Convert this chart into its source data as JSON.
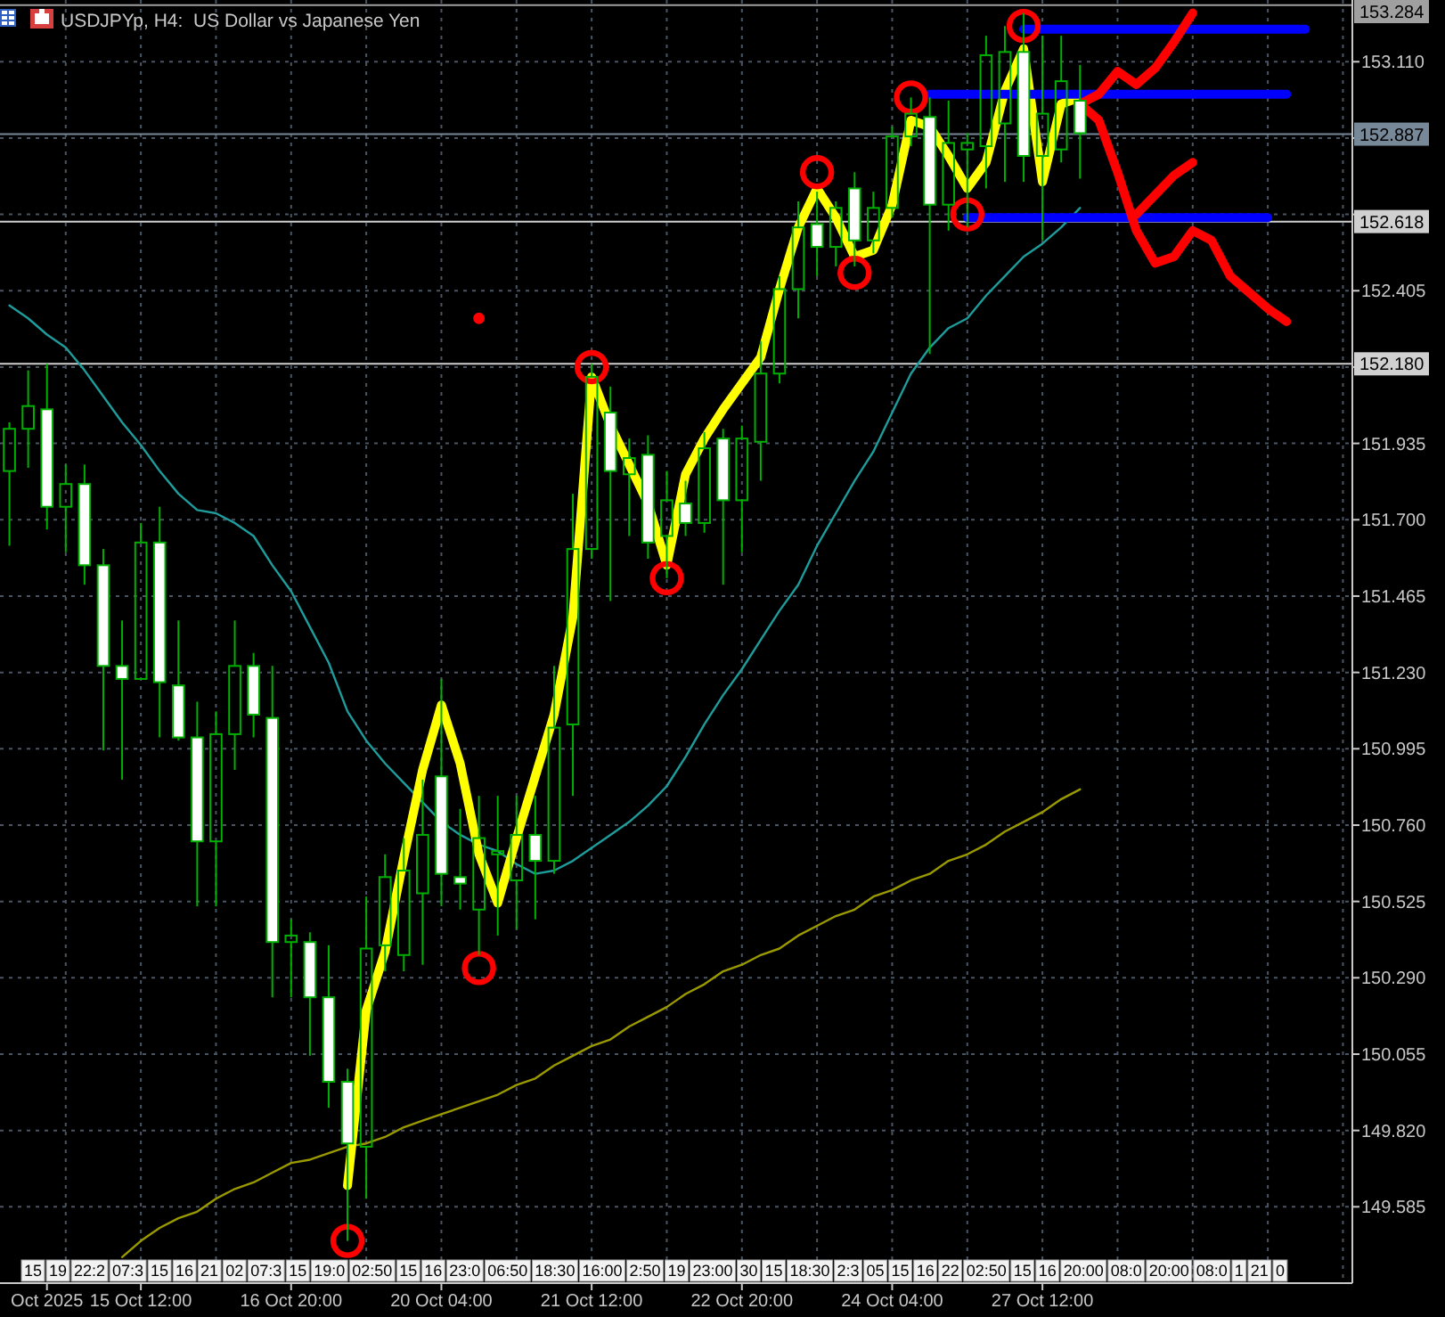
{
  "chart_data": {
    "type": "candlestick",
    "title": "USDJPYp, H4:  US Dollar vs Japanese Yen",
    "color": "#00b000",
    "grid": true,
    "categories": [
      null,
      null,
      "Oct 2025",
      null,
      null,
      null,
      null,
      "15 Oct 12:00",
      null,
      null,
      null,
      null,
      null,
      null,
      null,
      "16 Oct 20:00",
      null,
      null,
      null,
      null,
      null,
      null,
      null,
      "20 Oct 04:00",
      null,
      null,
      null,
      null,
      null,
      null,
      null,
      "21 Oct 12:00",
      null,
      null,
      null,
      null,
      null,
      null,
      null,
      "22 Oct 20:00",
      null,
      null,
      null,
      null,
      null,
      null,
      null,
      "24 Oct 04:00",
      null,
      null,
      null,
      null,
      null,
      null,
      null,
      "27 Oct 12:00",
      null,
      null,
      null,
      null,
      null,
      null,
      null,
      null,
      null,
      null,
      null,
      null,
      null,
      null,
      null,
      null
    ],
    "ohlc": [
      [
        151.85,
        152.0,
        151.62,
        151.98
      ],
      [
        151.98,
        152.16,
        151.86,
        152.05
      ],
      [
        152.04,
        152.18,
        151.67,
        151.74
      ],
      [
        151.74,
        151.87,
        151.6,
        151.81
      ],
      [
        151.81,
        151.87,
        151.5,
        151.56
      ],
      [
        151.56,
        151.61,
        150.99,
        151.25
      ],
      [
        151.25,
        151.39,
        150.9,
        151.21
      ],
      [
        151.21,
        151.69,
        151.21,
        151.63
      ],
      [
        151.63,
        151.74,
        151.03,
        151.2
      ],
      [
        151.19,
        151.39,
        151.02,
        151.03
      ],
      [
        151.03,
        151.14,
        150.51,
        150.71
      ],
      [
        150.71,
        151.11,
        150.51,
        151.04
      ],
      [
        151.04,
        151.39,
        150.93,
        151.25
      ],
      [
        151.25,
        151.29,
        151.03,
        151.1
      ],
      [
        151.09,
        151.25,
        150.23,
        150.4
      ],
      [
        150.4,
        150.47,
        150.23,
        150.42
      ],
      [
        150.4,
        150.43,
        150.05,
        150.23
      ],
      [
        150.23,
        150.39,
        149.89,
        149.97
      ],
      [
        149.97,
        150.01,
        149.48,
        149.78
      ],
      [
        149.77,
        150.54,
        149.61,
        150.38
      ],
      [
        150.39,
        150.67,
        150.31,
        150.6
      ],
      [
        150.36,
        150.72,
        150.31,
        150.62
      ],
      [
        150.55,
        150.9,
        150.33,
        150.73
      ],
      [
        150.91,
        151.21,
        150.51,
        150.61
      ],
      [
        150.6,
        150.81,
        150.5,
        150.58
      ],
      [
        150.5,
        150.85,
        150.36,
        150.72
      ],
      [
        150.67,
        150.85,
        150.42,
        150.68
      ],
      [
        150.59,
        150.85,
        150.44,
        150.73
      ],
      [
        150.73,
        150.85,
        150.47,
        150.65
      ],
      [
        150.65,
        151.25,
        150.61,
        151.06
      ],
      [
        151.07,
        151.78,
        150.85,
        151.61
      ],
      [
        151.61,
        152.18,
        151.58,
        152.14
      ],
      [
        152.03,
        152.11,
        151.45,
        151.85
      ],
      [
        151.84,
        151.95,
        151.65,
        151.89
      ],
      [
        151.9,
        151.96,
        151.58,
        151.63
      ],
      [
        151.65,
        151.85,
        151.52,
        151.76
      ],
      [
        151.75,
        151.82,
        151.65,
        151.69
      ],
      [
        151.69,
        151.97,
        151.66,
        151.92
      ],
      [
        151.95,
        151.98,
        151.5,
        151.76
      ],
      [
        151.76,
        151.99,
        151.6,
        151.95
      ],
      [
        151.94,
        152.25,
        151.82,
        152.15
      ],
      [
        152.15,
        152.45,
        152.12,
        152.41
      ],
      [
        152.41,
        152.68,
        152.32,
        152.6
      ],
      [
        152.61,
        152.71,
        152.45,
        152.54
      ],
      [
        152.54,
        152.68,
        152.48,
        152.66
      ],
      [
        152.72,
        152.77,
        152.48,
        152.56
      ],
      [
        152.56,
        152.71,
        152.52,
        152.66
      ],
      [
        152.66,
        152.91,
        152.63,
        152.88
      ],
      [
        152.88,
        153.0,
        152.85,
        152.95
      ],
      [
        152.94,
        153.0,
        152.21,
        152.67
      ],
      [
        152.67,
        152.99,
        152.59,
        152.86
      ],
      [
        152.84,
        152.89,
        152.6,
        152.86
      ],
      [
        152.85,
        153.19,
        152.72,
        153.13
      ],
      [
        152.92,
        153.22,
        152.74,
        153.14
      ],
      [
        153.14,
        153.26,
        152.74,
        152.82
      ],
      [
        152.82,
        153.19,
        152.56,
        152.95
      ],
      [
        152.84,
        153.19,
        152.8,
        153.05
      ],
      [
        152.99,
        153.1,
        152.75,
        152.89
      ],
      null,
      null,
      null,
      null,
      null,
      null,
      null,
      null,
      null,
      null,
      null,
      null,
      null,
      null
    ],
    "ylim": [
      149.35,
      153.3
    ],
    "yticks": [
      149.585,
      {
        "value": 149.82,
        "label": "149.820"
      },
      150.055,
      {
        "value": 150.29,
        "label": "150.290"
      },
      150.525,
      {
        "value": 150.76,
        "label": "150.760"
      },
      150.995,
      {
        "value": 151.23,
        "label": "151.230"
      },
      151.465,
      {
        "value": 151.7,
        "label": "151.700"
      },
      151.935,
      {
        "value": 152.17,
        "label": null
      },
      152.405,
      {
        "value": 152.64,
        "label": null
      },
      {
        "value": 152.875,
        "label": null
      },
      {
        "value": 153.11,
        "label": "153.110"
      }
    ],
    "ref_lines": [
      {
        "axis": "y",
        "value": 152.18,
        "label": "152.180",
        "color": "#d0d0d0"
      },
      {
        "axis": "y",
        "value": 152.618,
        "label": "152.618",
        "color": "#d0d0d0"
      },
      {
        "axis": "y",
        "value": 152.887,
        "label": "152.887",
        "color": "#778899"
      },
      {
        "axis": "y",
        "value": 153.284,
        "label": "153.284",
        "color": "#a0a0a0"
      }
    ],
    "series": [
      {
        "type": "line",
        "color": "#1f9c9c",
        "values": [
          152.36,
          152.32,
          152.27,
          152.23,
          152.16,
          152.08,
          152.0,
          151.93,
          151.85,
          151.78,
          151.73,
          151.72,
          151.69,
          151.65,
          151.56,
          151.48,
          151.37,
          151.26,
          151.11,
          151.02,
          150.95,
          150.89,
          150.83,
          150.77,
          150.73,
          150.7,
          150.68,
          150.64,
          150.61,
          150.62,
          150.65,
          150.69,
          150.73,
          150.77,
          150.82,
          150.88,
          150.97,
          151.07,
          151.16,
          151.24,
          151.33,
          151.42,
          151.5,
          151.62,
          151.72,
          151.82,
          151.91,
          152.03,
          152.15,
          152.23,
          152.29,
          152.32,
          152.39,
          152.45,
          152.51,
          152.55,
          152.6,
          152.66,
          null,
          null,
          null,
          null,
          null,
          null,
          null,
          null,
          null,
          null,
          null,
          null,
          null,
          null
        ]
      },
      {
        "type": "line",
        "color": "#9a9a00",
        "values": [
          null,
          null,
          null,
          null,
          null,
          null,
          149.43,
          149.48,
          149.52,
          149.55,
          149.57,
          149.61,
          149.64,
          149.66,
          149.69,
          149.72,
          149.73,
          149.75,
          149.77,
          149.78,
          149.8,
          149.83,
          149.85,
          149.87,
          149.89,
          149.91,
          149.93,
          149.96,
          149.98,
          150.02,
          150.05,
          150.08,
          150.1,
          150.14,
          150.17,
          150.2,
          150.24,
          150.27,
          150.31,
          150.33,
          150.36,
          150.38,
          150.42,
          150.45,
          150.48,
          150.5,
          150.54,
          150.56,
          150.59,
          150.61,
          150.65,
          150.67,
          150.7,
          150.74,
          150.77,
          150.8,
          150.84,
          150.87,
          null,
          null,
          null,
          null,
          null,
          null,
          null,
          null,
          null,
          null,
          null,
          null,
          null,
          null
        ]
      },
      {
        "type": "line",
        "color": "#ffff00",
        "values": [
          null,
          null,
          null,
          null,
          null,
          null,
          null,
          null,
          null,
          null,
          null,
          null,
          null,
          null,
          null,
          null,
          null,
          null,
          149.65,
          150.19,
          150.37,
          150.66,
          150.93,
          151.13,
          150.95,
          150.67,
          150.52,
          150.72,
          150.91,
          151.1,
          151.4,
          152.14,
          151.99,
          151.87,
          151.75,
          151.56,
          151.84,
          151.95,
          152.04,
          152.12,
          152.2,
          152.41,
          152.6,
          152.72,
          152.63,
          152.51,
          152.53,
          152.67,
          152.93,
          152.91,
          152.82,
          152.72,
          152.8,
          153.02,
          153.15,
          152.74,
          152.98,
          153.0,
          null,
          null,
          null,
          null,
          null,
          null,
          null,
          null,
          null,
          null,
          null,
          null,
          null,
          null
        ]
      },
      {
        "type": "line",
        "color": "#0000ff",
        "values": [
          null,
          null,
          null,
          null,
          null,
          null,
          null,
          null,
          null,
          null,
          null,
          null,
          null,
          null,
          null,
          null,
          null,
          null,
          null,
          null,
          null,
          null,
          null,
          null,
          null,
          null,
          null,
          null,
          null,
          null,
          null,
          null,
          null,
          null,
          null,
          null,
          null,
          null,
          null,
          null,
          null,
          null,
          null,
          null,
          null,
          null,
          null,
          null,
          null,
          null,
          null,
          null,
          null,
          null,
          153.21,
          153.21,
          153.21,
          153.21,
          153.21,
          153.21,
          153.21,
          153.21,
          153.21,
          153.21,
          153.21,
          153.21,
          153.21,
          153.21,
          153.21,
          153.21,
          null,
          null
        ]
      },
      {
        "type": "line",
        "color": "#0000ff",
        "values": [
          null,
          null,
          null,
          null,
          null,
          null,
          null,
          null,
          null,
          null,
          null,
          null,
          null,
          null,
          null,
          null,
          null,
          null,
          null,
          null,
          null,
          null,
          null,
          null,
          null,
          null,
          null,
          null,
          null,
          null,
          null,
          null,
          null,
          null,
          null,
          null,
          null,
          null,
          null,
          null,
          null,
          null,
          null,
          null,
          null,
          null,
          null,
          null,
          null,
          153.01,
          153.01,
          153.01,
          153.01,
          153.01,
          153.01,
          153.01,
          153.01,
          153.01,
          153.01,
          153.01,
          153.01,
          153.01,
          153.01,
          153.01,
          153.01,
          153.01,
          153.01,
          153.01,
          153.01,
          null,
          null,
          null
        ]
      },
      {
        "type": "line",
        "color": "#0000ff",
        "values": [
          null,
          null,
          null,
          null,
          null,
          null,
          null,
          null,
          null,
          null,
          null,
          null,
          null,
          null,
          null,
          null,
          null,
          null,
          null,
          null,
          null,
          null,
          null,
          null,
          null,
          null,
          null,
          null,
          null,
          null,
          null,
          null,
          null,
          null,
          null,
          null,
          null,
          null,
          null,
          null,
          null,
          null,
          null,
          null,
          null,
          null,
          null,
          null,
          null,
          null,
          null,
          152.63,
          152.63,
          152.63,
          152.63,
          152.63,
          152.63,
          152.63,
          152.63,
          152.63,
          152.63,
          152.63,
          152.63,
          152.63,
          152.63,
          152.63,
          152.63,
          152.63,
          null,
          null,
          null,
          null
        ]
      },
      {
        "type": "line",
        "color": "#ff0000",
        "values": [
          null,
          null,
          null,
          null,
          null,
          null,
          null,
          null,
          null,
          null,
          null,
          null,
          null,
          null,
          null,
          null,
          null,
          null,
          null,
          null,
          null,
          null,
          null,
          null,
          null,
          null,
          null,
          null,
          null,
          null,
          null,
          null,
          null,
          null,
          null,
          null,
          null,
          null,
          null,
          null,
          null,
          null,
          null,
          null,
          null,
          null,
          null,
          null,
          null,
          null,
          null,
          null,
          null,
          null,
          null,
          null,
          null,
          152.98,
          152.93,
          152.77,
          152.59,
          152.49,
          152.51,
          152.59,
          152.56,
          152.45,
          152.4,
          152.35,
          152.31,
          null,
          null,
          null
        ]
      },
      {
        "type": "line",
        "color": "#ff0000",
        "values": [
          null,
          null,
          null,
          null,
          null,
          null,
          null,
          null,
          null,
          null,
          null,
          null,
          null,
          null,
          null,
          null,
          null,
          null,
          null,
          null,
          null,
          null,
          null,
          null,
          null,
          null,
          null,
          null,
          null,
          null,
          null,
          null,
          null,
          null,
          null,
          null,
          null,
          null,
          null,
          null,
          null,
          null,
          null,
          null,
          null,
          null,
          null,
          null,
          null,
          null,
          null,
          null,
          null,
          null,
          null,
          null,
          null,
          152.98,
          153.01,
          153.08,
          153.04,
          153.09,
          153.17,
          153.26,
          null,
          null,
          null,
          null,
          null,
          null,
          null,
          null
        ]
      },
      {
        "type": "line",
        "color": "#ff0000",
        "values": [
          null,
          null,
          null,
          null,
          null,
          null,
          null,
          null,
          null,
          null,
          null,
          null,
          null,
          null,
          null,
          null,
          null,
          null,
          null,
          null,
          null,
          null,
          null,
          null,
          null,
          null,
          null,
          null,
          null,
          null,
          null,
          null,
          null,
          null,
          null,
          null,
          null,
          null,
          null,
          null,
          null,
          null,
          null,
          null,
          null,
          null,
          null,
          null,
          null,
          null,
          null,
          null,
          null,
          null,
          null,
          null,
          null,
          null,
          null,
          null,
          152.64,
          152.7,
          152.76,
          152.8,
          null,
          null,
          null,
          null,
          null,
          null,
          null,
          null
        ]
      },
      {
        "type": "bubble",
        "color": "#ff0000",
        "values": [
          null,
          null,
          null,
          null,
          null,
          null,
          null,
          null,
          null,
          null,
          null,
          null,
          null,
          null,
          null,
          null,
          null,
          null,
          149.48,
          null,
          null,
          null,
          null,
          null,
          null,
          150.32,
          null,
          null,
          null,
          null,
          null,
          152.17,
          null,
          null,
          null,
          151.52,
          null,
          null,
          null,
          null,
          null,
          null,
          null,
          152.77,
          null,
          152.46,
          null,
          null,
          153.0,
          null,
          null,
          152.64,
          null,
          null,
          153.22,
          null,
          null,
          null,
          null,
          null,
          null,
          null,
          null,
          null,
          null,
          null,
          null,
          null,
          null,
          null,
          null,
          null
        ],
        "sizes": [
          null,
          null,
          null,
          null,
          null,
          null,
          null,
          null,
          null,
          null,
          null,
          null,
          null,
          null,
          null,
          null,
          null,
          null,
          1,
          null,
          null,
          null,
          null,
          null,
          null,
          1,
          null,
          null,
          null,
          null,
          null,
          1,
          null,
          null,
          null,
          1,
          null,
          null,
          null,
          null,
          null,
          null,
          null,
          1,
          null,
          1,
          null,
          null,
          1,
          null,
          null,
          1,
          null,
          null,
          1,
          null,
          null,
          null,
          null,
          null,
          null,
          null,
          null,
          null,
          null,
          null,
          null,
          null,
          null,
          null,
          null,
          null
        ]
      },
      {
        "type": "bubble",
        "color": "#ff0000",
        "values": [
          null,
          null,
          null,
          null,
          null,
          null,
          null,
          null,
          null,
          null,
          null,
          null,
          null,
          null,
          null,
          null,
          null,
          null,
          null,
          null,
          null,
          null,
          null,
          null,
          null,
          152.32,
          null,
          null,
          null,
          null,
          null,
          null,
          null,
          null,
          null,
          null,
          null,
          null,
          null,
          null,
          null,
          null,
          null,
          null,
          null,
          null,
          null,
          null,
          null,
          null,
          null,
          null,
          null,
          null,
          null,
          null,
          null,
          null,
          null,
          null,
          null,
          null,
          null,
          null,
          null,
          null,
          null,
          null,
          null,
          null,
          null,
          null
        ],
        "sizes": [
          null,
          null,
          null,
          null,
          null,
          null,
          null,
          null,
          null,
          null,
          null,
          null,
          null,
          null,
          null,
          null,
          null,
          null,
          null,
          null,
          null,
          null,
          null,
          null,
          null,
          0.04,
          null,
          null,
          null,
          null,
          null,
          null,
          null,
          null,
          null,
          null,
          null,
          null,
          null,
          null,
          null,
          null,
          null,
          null,
          null,
          null,
          null,
          null,
          null,
          null,
          null,
          null,
          null,
          null,
          null,
          null,
          null,
          null,
          null,
          null,
          null,
          null,
          null,
          null,
          null,
          null,
          null,
          null,
          null,
          null,
          null,
          null
        ]
      }
    ],
    "annotations": [
      "15",
      "19",
      "22:2",
      "07:3",
      "15",
      "16",
      "21",
      "02",
      "07:3",
      "15",
      "19:0",
      "02:50",
      "15",
      "16",
      "23:0",
      "06:50",
      "18:30",
      "16:00",
      "2:50",
      "19",
      "23:00",
      "30",
      "15",
      "18:30",
      "2:3",
      "05",
      "15",
      "16",
      "22",
      "02:50",
      "15",
      "16",
      "20:00",
      "08:0",
      "20:00",
      "08:0",
      "1",
      "21",
      "0"
    ]
  }
}
